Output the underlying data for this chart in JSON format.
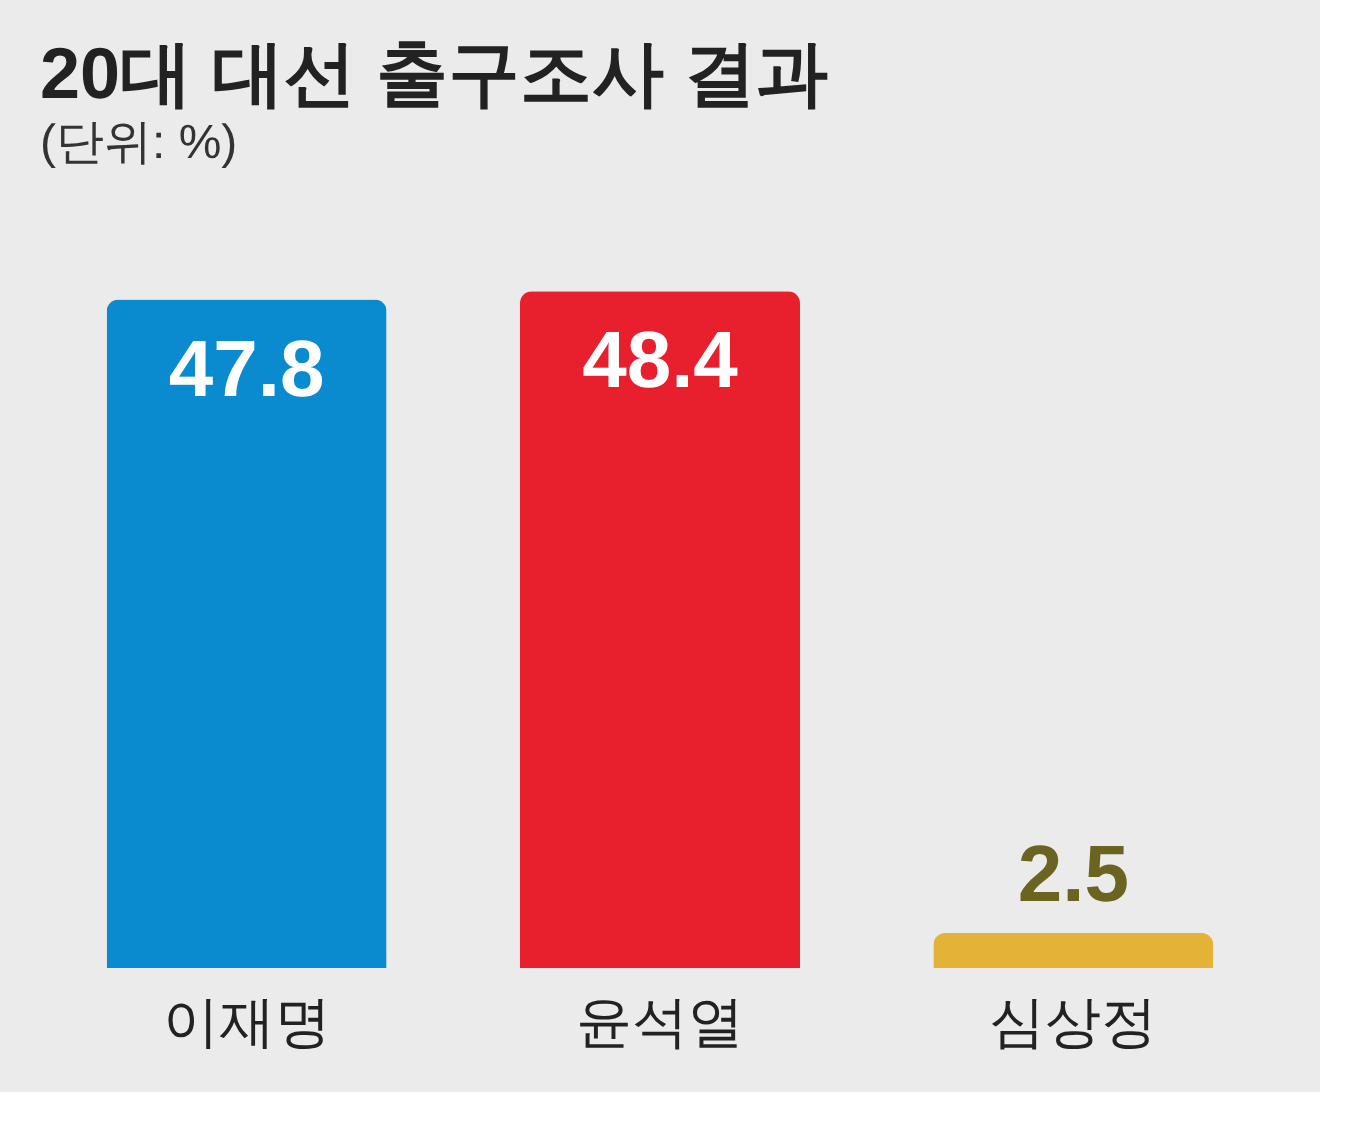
{
  "chart_data": {
    "type": "bar",
    "title": "20대 대선 출구조사 결과",
    "subtitle": "(단위: %)",
    "categories": [
      "이재명",
      "윤석열",
      "심상정"
    ],
    "values": [
      47.8,
      48.4,
      2.5
    ],
    "colors": [
      "#0a8bd0",
      "#e8202e",
      "#e3b237"
    ],
    "data_labels": true
  }
}
